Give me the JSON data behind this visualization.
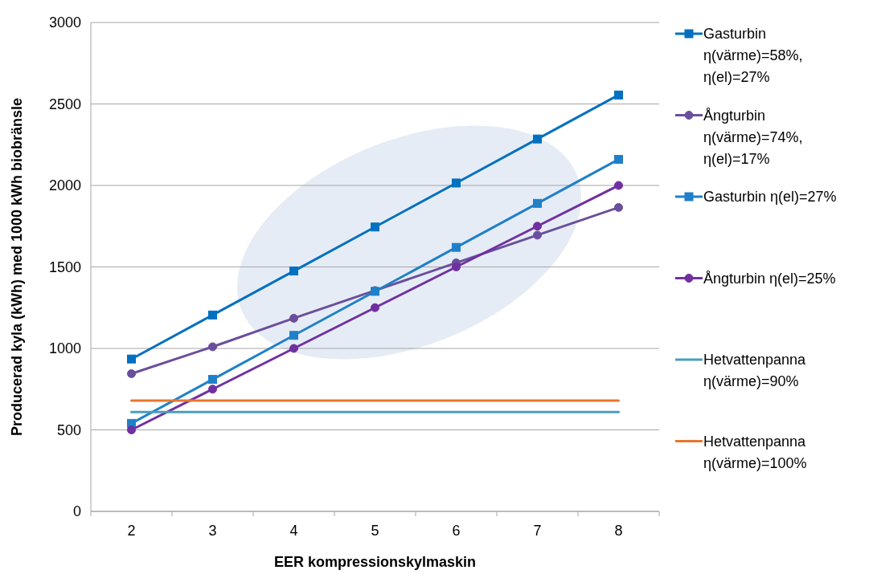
{
  "chart_data": {
    "type": "line",
    "xlabel": "EER kompressionskylmaskin",
    "ylabel": "Producerad kyla (kWh) med 1000 kWh biobränsle",
    "categories": [
      "2",
      "3",
      "4",
      "5",
      "6",
      "7",
      "8"
    ],
    "ylim": [
      0,
      3000
    ],
    "yticks": [
      0,
      500,
      1000,
      1500,
      2000,
      2500,
      3000
    ],
    "grid": "y",
    "legend": "right",
    "series": [
      {
        "name": "Gasturbin η(värme)=58%, η(el)=27%",
        "color": "#0070c0",
        "marker": "square",
        "values": [
          935,
          1205,
          1475,
          1745,
          2015,
          2285,
          2555
        ]
      },
      {
        "name": "Ångturbin η(värme)=74%, η(el)=17%",
        "color": "#6a4f9c",
        "marker": "circle",
        "values": [
          845,
          1010,
          1185,
          1355,
          1525,
          1695,
          1865
        ]
      },
      {
        "name": "Gasturbin η(el)=27%",
        "color": "#1f80c8",
        "marker": "square",
        "values": [
          540,
          810,
          1080,
          1350,
          1620,
          1890,
          2160
        ]
      },
      {
        "name": "Ångturbin η(el)=25%",
        "color": "#7030a0",
        "marker": "circle",
        "values": [
          500,
          750,
          1000,
          1250,
          1500,
          1750,
          2000
        ]
      },
      {
        "name": "Hetvattenpanna η(värme)=90%",
        "color": "#4a9ebb",
        "marker": "none",
        "values": [
          610,
          610,
          610,
          610,
          610,
          610,
          610
        ]
      },
      {
        "name": "Hetvattenpanna η(värme)=100%",
        "color": "#e8762c",
        "marker": "none",
        "values": [
          680,
          680,
          680,
          680,
          680,
          680,
          680
        ]
      }
    ]
  }
}
